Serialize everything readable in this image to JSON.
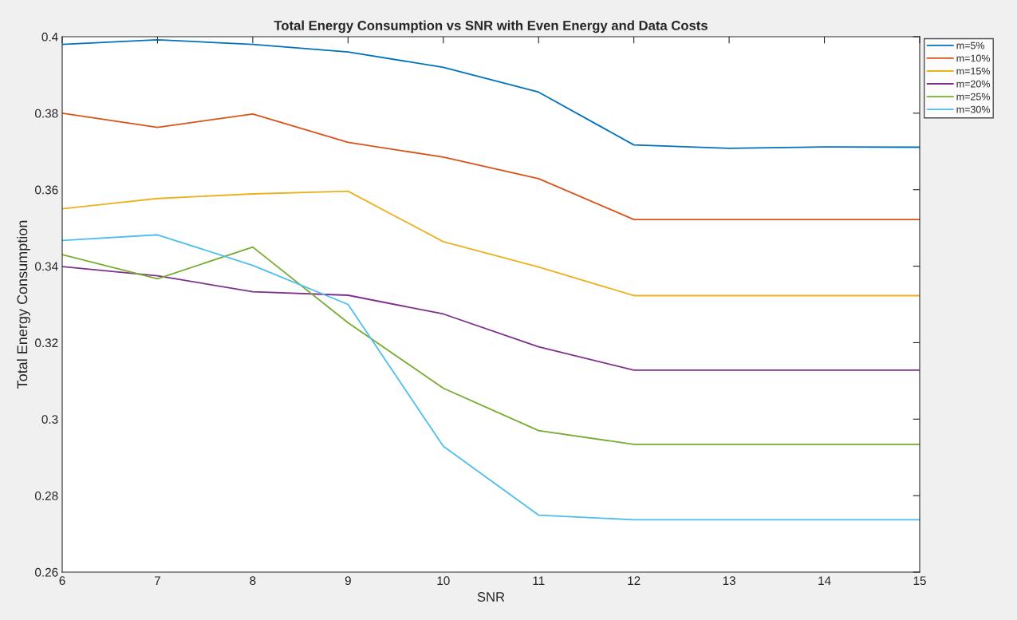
{
  "chart_data": {
    "type": "line",
    "title": "Total Energy Consumption vs SNR with Even Energy and Data Costs",
    "xlabel": "SNR",
    "ylabel": "Total Energy Consumption",
    "x": [
      6,
      7,
      8,
      9,
      10,
      11,
      12,
      13,
      14,
      15
    ],
    "series": [
      {
        "name": "m=5%",
        "color": "#0072bd",
        "values": [
          0.398,
          0.3992,
          0.398,
          0.396,
          0.392,
          0.3855,
          0.3717,
          0.3708,
          0.3712,
          0.3711
        ]
      },
      {
        "name": "m=10%",
        "color": "#d95319",
        "values": [
          0.38,
          0.3763,
          0.3798,
          0.3724,
          0.3685,
          0.3629,
          0.3522,
          0.3522,
          0.3522,
          0.3522
        ]
      },
      {
        "name": "m=15%",
        "color": "#edb120",
        "values": [
          0.355,
          0.3577,
          0.3589,
          0.3596,
          0.3464,
          0.3398,
          0.3323,
          0.3323,
          0.3323,
          0.3323
        ]
      },
      {
        "name": "m=20%",
        "color": "#7e2f8e",
        "values": [
          0.3399,
          0.3375,
          0.3333,
          0.3324,
          0.3275,
          0.3189,
          0.3128,
          0.3128,
          0.3128,
          0.3128
        ]
      },
      {
        "name": "m=25%",
        "color": "#77ac30",
        "values": [
          0.343,
          0.3367,
          0.345,
          0.3252,
          0.3081,
          0.297,
          0.2934,
          0.2934,
          0.2934,
          0.2934
        ]
      },
      {
        "name": "m=30%",
        "color": "#4dbeee",
        "values": [
          0.3467,
          0.3482,
          0.3402,
          0.33,
          0.2929,
          0.2749,
          0.2737,
          0.2737,
          0.2737,
          0.2737
        ]
      }
    ],
    "xlim": [
      6,
      15
    ],
    "xticks": [
      6,
      7,
      8,
      9,
      10,
      11,
      12,
      13,
      14,
      15
    ],
    "ylim": [
      0.26,
      0.4
    ],
    "yticks": [
      {
        "value": 0.26,
        "label": "0.26"
      },
      {
        "value": 0.28,
        "label": "0.28"
      },
      {
        "value": 0.3,
        "label": "0.3"
      },
      {
        "value": 0.32,
        "label": "0.32"
      },
      {
        "value": 0.34,
        "label": "0.34"
      },
      {
        "value": 0.36,
        "label": "0.36"
      },
      {
        "value": 0.38,
        "label": "0.38"
      },
      {
        "value": 0.4,
        "label": "0.4"
      }
    ],
    "grid": false,
    "legend": "top right",
    "marker": "none",
    "line_style": "solid"
  }
}
